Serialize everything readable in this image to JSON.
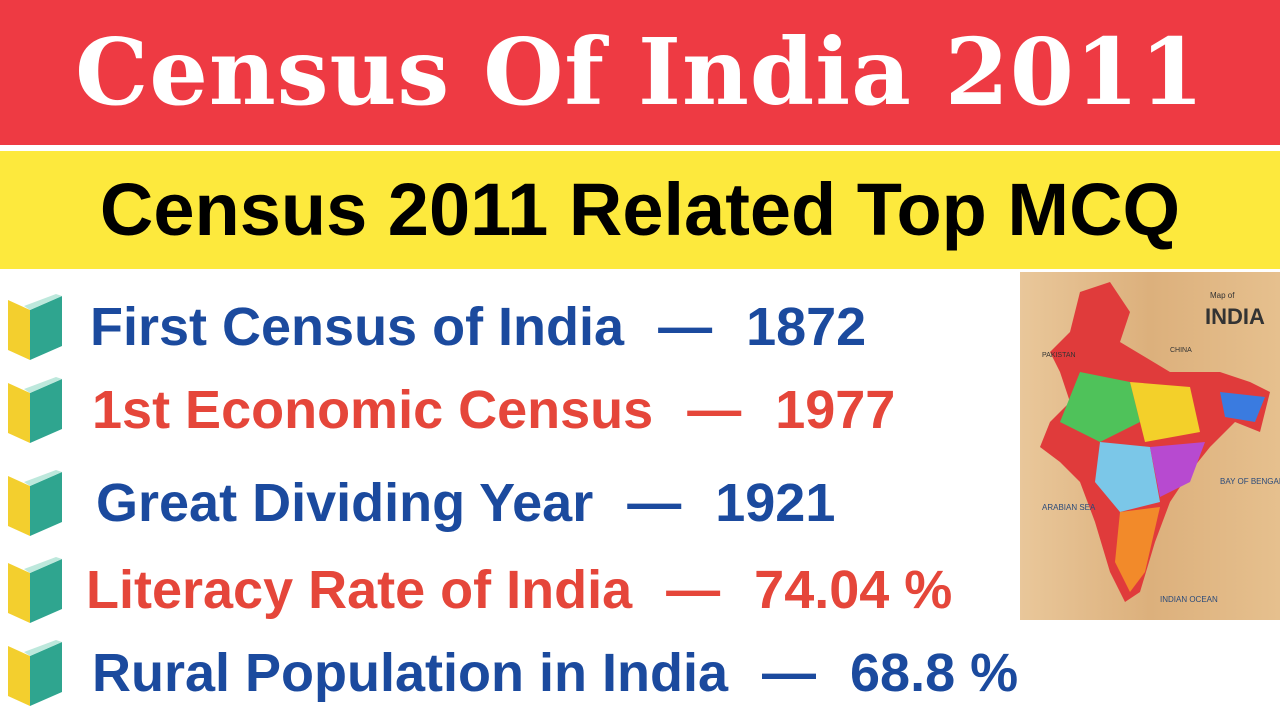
{
  "header": {
    "title": "Census Of India 2011",
    "subtitle": "Census 2011 Related Top MCQ"
  },
  "items": [
    {
      "label": "First Census of India",
      "separator": "—",
      "value": "1872",
      "color": "#1b4a9e"
    },
    {
      "label": "1st Economic Census",
      "separator": "—",
      "value": "1977",
      "color": "#e5463a"
    },
    {
      "label": "Great Dividing Year",
      "separator": "—",
      "value": "1921",
      "color": "#1b4a9e"
    },
    {
      "label": "Literacy Rate of India",
      "separator": "—",
      "value": "74.04 %",
      "color": "#e5463a"
    },
    {
      "label": "Rural Population in India",
      "separator": "—",
      "value": "68.8 %",
      "color": "#1b4a9e"
    }
  ],
  "map": {
    "caption": "Map of",
    "title": "INDIA",
    "labels": [
      "ARABIAN SEA",
      "BAY OF BENGAL",
      "INDIAN OCEAN",
      "PAKISTAN",
      "CHINA"
    ]
  }
}
